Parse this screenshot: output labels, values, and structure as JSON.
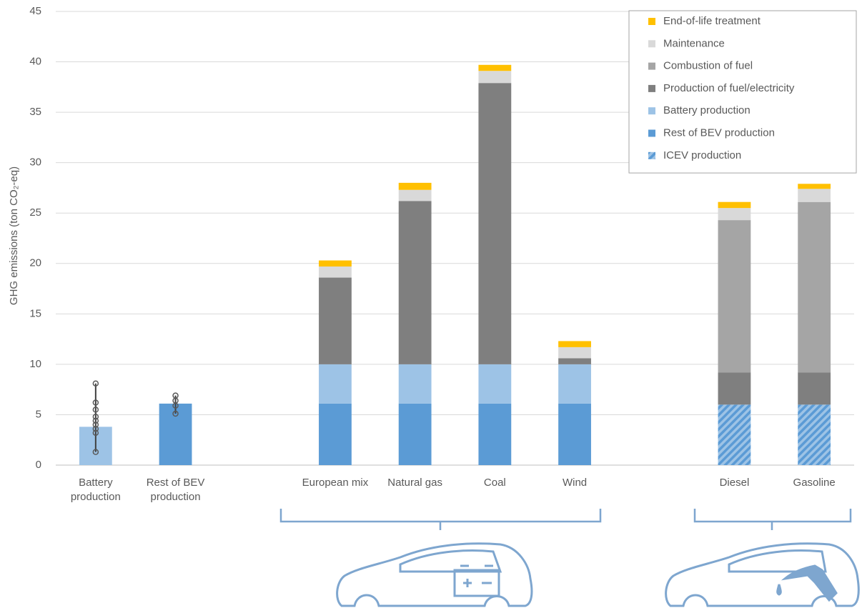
{
  "chart_data": {
    "type": "bar",
    "stacked": true,
    "y_label": "GHG emissions (ton CO₂-eq)",
    "categories": [
      "Battery production",
      "Rest of BEV production",
      null,
      "European mix",
      "Natural gas",
      "Coal",
      "Wind",
      null,
      "Diesel",
      "Gasoline"
    ],
    "series": [
      {
        "name": "End-of-life treatment",
        "color": "#ffc000",
        "values": [
          null,
          null,
          null,
          0.6,
          0.7,
          0.6,
          0.6,
          null,
          0.6,
          0.5
        ]
      },
      {
        "name": "Maintenance",
        "color": "#d9d9d9",
        "values": [
          null,
          null,
          null,
          1.1,
          1.1,
          1.2,
          1.1,
          null,
          1.2,
          1.3
        ]
      },
      {
        "name": "Combustion of fuel",
        "color": "#a5a5a5",
        "values": [
          null,
          null,
          null,
          null,
          null,
          null,
          null,
          null,
          15.1,
          16.9
        ]
      },
      {
        "name": "Production of fuel/electricity",
        "color": "#7f7f7f",
        "values": [
          null,
          null,
          null,
          8.6,
          16.2,
          27.9,
          0.6,
          null,
          3.2,
          3.2
        ]
      },
      {
        "name": "Battery production",
        "color": "#9dc3e6",
        "values": [
          3.8,
          null,
          null,
          3.9,
          3.9,
          3.9,
          3.9,
          null,
          null,
          null
        ]
      },
      {
        "name": "Rest of BEV production",
        "color": "#5b9bd5",
        "values": [
          null,
          6.1,
          null,
          6.1,
          6.1,
          6.1,
          6.1,
          null,
          null,
          null
        ]
      },
      {
        "name": "ICEV production",
        "color": "#5b9bd5",
        "pattern": "hatch",
        "values": [
          null,
          null,
          null,
          null,
          null,
          null,
          null,
          null,
          6.0,
          6.0
        ]
      }
    ],
    "error_bars": [
      {
        "category": "Battery production",
        "low": 1.3,
        "high": 8.1,
        "points": [
          1.3,
          3.2,
          3.6,
          4.0,
          4.4,
          4.8,
          5.5,
          6.2,
          8.1
        ]
      },
      {
        "category": "Rest of BEV production",
        "low": 5.1,
        "high": 6.9,
        "points": [
          5.1,
          5.9,
          6.4,
          6.9
        ]
      }
    ],
    "ylim": [
      0,
      45
    ],
    "yticks": [
      0,
      5,
      10,
      15,
      20,
      25,
      30,
      35,
      40,
      45
    ],
    "grid": true,
    "legend": "upper right"
  }
}
